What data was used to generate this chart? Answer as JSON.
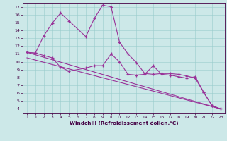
{
  "title": "",
  "xlabel": "Windchill (Refroidissement éolien,°C)",
  "bg_color": "#cce8e8",
  "line_color": "#993399",
  "xlim": [
    -0.5,
    23.5
  ],
  "ylim": [
    3.5,
    17.5
  ],
  "yticks": [
    4,
    5,
    6,
    7,
    8,
    9,
    10,
    11,
    12,
    13,
    14,
    15,
    16,
    17
  ],
  "xticks": [
    0,
    1,
    2,
    3,
    4,
    5,
    6,
    7,
    8,
    9,
    10,
    11,
    12,
    13,
    14,
    15,
    16,
    17,
    18,
    19,
    20,
    21,
    22,
    23
  ],
  "series_spike_x": [
    0,
    1,
    2,
    3,
    4,
    5,
    7,
    8,
    9,
    10,
    11,
    12,
    13,
    14,
    15,
    16,
    17,
    18,
    19,
    20,
    21,
    22,
    23
  ],
  "series_spike_y": [
    11.2,
    11.1,
    13.3,
    14.9,
    16.2,
    15.2,
    13.2,
    15.5,
    17.2,
    17.0,
    12.5,
    11.0,
    9.9,
    8.5,
    8.4,
    8.5,
    8.5,
    8.4,
    8.2,
    7.9,
    6.1,
    4.4,
    4.0
  ],
  "series_flat_x": [
    0,
    1,
    2,
    3,
    4,
    5,
    7,
    8,
    9,
    10,
    11,
    12,
    13,
    14,
    15,
    16,
    17,
    18,
    19,
    20,
    21,
    22,
    23
  ],
  "series_flat_y": [
    11.2,
    11.1,
    10.8,
    10.5,
    9.3,
    8.8,
    9.2,
    9.5,
    9.5,
    11.0,
    10.0,
    8.4,
    8.3,
    8.4,
    9.5,
    8.4,
    8.3,
    8.1,
    7.9,
    8.1,
    6.1,
    4.4,
    4.0
  ],
  "line1_x": [
    0,
    23
  ],
  "line1_y": [
    11.2,
    4.0
  ],
  "line2_x": [
    0,
    23
  ],
  "line2_y": [
    10.5,
    4.0
  ]
}
